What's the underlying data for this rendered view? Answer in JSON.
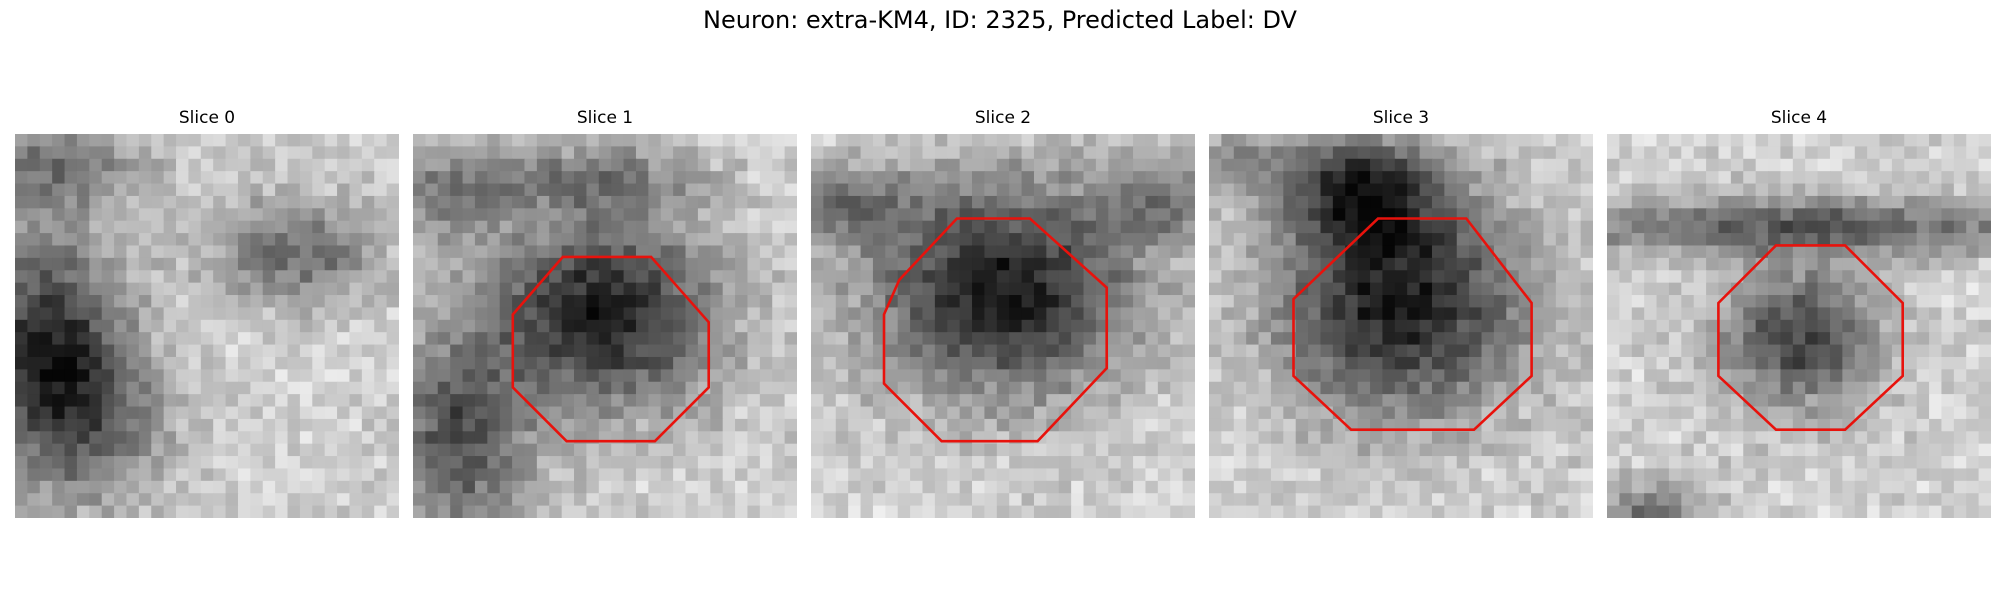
{
  "figure": {
    "title": "Neuron: extra-KM4, ID: 2325, Predicted Label: DV"
  },
  "contour_color": "#e8120c",
  "panels": [
    {
      "title": "Slice 0",
      "has_contour": false
    },
    {
      "title": "Slice 1",
      "has_contour": true
    },
    {
      "title": "Slice 2",
      "has_contour": true
    },
    {
      "title": "Slice 3",
      "has_contour": true
    },
    {
      "title": "Slice 4",
      "has_contour": true
    }
  ]
}
